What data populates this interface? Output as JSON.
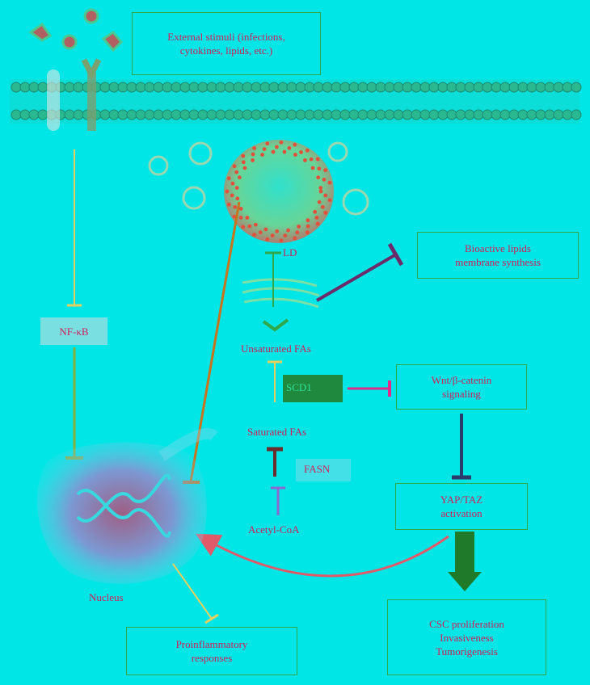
{
  "stimuli": {
    "lines": [
      "External stimuli (infections,",
      "cytokines, lipids, etc.)"
    ]
  },
  "nfkb": "NF-κB",
  "nucleus": "Nucleus",
  "proinflammatory": {
    "lines": [
      "Proinflammatory",
      "responses"
    ]
  },
  "bioactive": {
    "lines": [
      "Bioactive lipids",
      "membrane synthesis"
    ]
  },
  "ld_label": "LD",
  "unsaturated": "Unsaturated FAs",
  "saturated": "Saturated FAs",
  "scd1": "SCD1",
  "fasn": "FASN",
  "acetyl": "Acetyl-CoA",
  "wnt": {
    "lines": [
      "Wnt/β-catenin",
      "signaling"
    ]
  },
  "yap": {
    "lines": [
      "YAP/TAZ",
      "activation"
    ]
  },
  "csc": {
    "lines": [
      "CSC proliferation",
      "Invasiveness",
      "Tumorigenesis"
    ]
  },
  "colors": {
    "background": "#00e5e5",
    "text": "#d21e5a",
    "box_border": "#2ea84a"
  }
}
